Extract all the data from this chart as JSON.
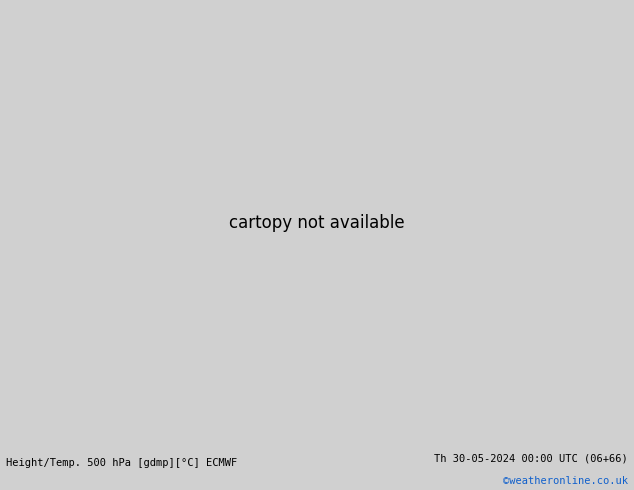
{
  "title_left": "Height/Temp. 500 hPa [gdmp][°C] ECMWF",
  "title_right": "Th 30-05-2024 00:00 UTC (06+66)",
  "credit": "©weatheronline.co.uk",
  "land_green": "#c8e6a0",
  "land_gray": "#c0c0c0",
  "sea_color": "#d8d8d8",
  "border_color": "#909090",
  "z500_color": "#000000",
  "temp_cyan_color": "#00c0c0",
  "temp_blue_color": "#1e90ff",
  "temp_green_color": "#88cc00",
  "temp_orange_color": "#ff9900",
  "fig_bg": "#d0d0d0"
}
